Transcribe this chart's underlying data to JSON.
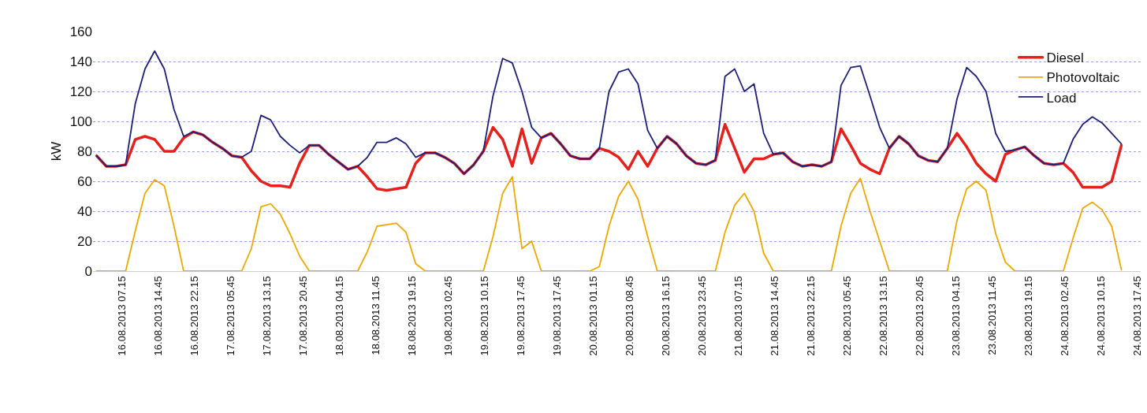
{
  "chart_data": {
    "type": "line",
    "ylabel": "kW",
    "grid": "y",
    "legend": "top right",
    "marker": "none",
    "line_style": "solid",
    "ylim": [
      0,
      160
    ],
    "yticks": [
      0,
      20,
      40,
      60,
      80,
      100,
      120,
      140,
      160
    ],
    "xlim": [
      "2013-08-16T01:15",
      "2013-08-25T02:00"
    ],
    "xticks": [
      {
        "value": "2013-08-16T07:15",
        "label": "16.08.2013 07.15"
      },
      {
        "value": "2013-08-16T14:45",
        "label": "16.08.2013 14.45"
      },
      {
        "value": "2013-08-16T22:15",
        "label": "16.08.2013 22.15"
      },
      {
        "value": "2013-08-17T05:45",
        "label": "17.08.2013 05.45"
      },
      {
        "value": "2013-08-17T13:15",
        "label": "17.08.2013 13.15"
      },
      {
        "value": "2013-08-17T20:45",
        "label": "17.08.2013 20.45"
      },
      {
        "value": "2013-08-18T04:15",
        "label": "18.08.2013 04.15"
      },
      {
        "value": "2013-08-18T11:45",
        "label": "18.08.2013 11.45"
      },
      {
        "value": "2013-08-18T19:15",
        "label": "18.08.2013 19.15"
      },
      {
        "value": "2013-08-19T02:45",
        "label": "19.08.2013 02.45"
      },
      {
        "value": "2013-08-19T10:15",
        "label": "19.08.2013 10.15"
      },
      {
        "value": "2013-08-19T17:45",
        "label": "19.08.2013 17.45"
      },
      {
        "value": "2013-08-20T01:15",
        "label": "19.08.2013 17.45"
      },
      {
        "value": "2013-08-20T08:45",
        "label": "20.08.2013 01.15"
      },
      {
        "value": "2013-08-20T16:15",
        "label": "20.08.2013 08.45"
      },
      {
        "value": "2013-08-20T23:45",
        "label": "20.08.2013 16.15"
      },
      {
        "value": "2013-08-21T07:15",
        "label": "20.08.2013 23.45"
      },
      {
        "value": "2013-08-21T14:45",
        "label": "21.08.2013 07.15"
      },
      {
        "value": "2013-08-21T22:15",
        "label": "21.08.2013 14.45"
      },
      {
        "value": "2013-08-22T05:45",
        "label": "21.08.2013 22.15"
      },
      {
        "value": "2013-08-22T13:15",
        "label": "22.08.2013 05.45"
      },
      {
        "value": "2013-08-22T20:45",
        "label": "22.08.2013 13.15"
      },
      {
        "value": "2013-08-23T04:15",
        "label": "22.08.2013 20.45"
      },
      {
        "value": "2013-08-23T11:45",
        "label": "23.08.2013 04.15"
      },
      {
        "value": "2013-08-23T19:15",
        "label": "23.08.2013 11.45"
      },
      {
        "value": "2013-08-24T02:45",
        "label": "23.08.2013 19.15"
      },
      {
        "value": "2013-08-24T10:15",
        "label": "24.08.2013 02.45"
      },
      {
        "value": "2013-08-24T17:45",
        "label": "24.08.2013 10.15"
      },
      {
        "value": "2013-08-25T01:15",
        "label": "24.08.2013 17.45"
      }
    ],
    "x": [
      "2013-08-16T02:00",
      "2013-08-16T04:00",
      "2013-08-16T06:00",
      "2013-08-16T08:00",
      "2013-08-16T10:00",
      "2013-08-16T12:00",
      "2013-08-16T14:00",
      "2013-08-16T16:00",
      "2013-08-16T18:00",
      "2013-08-16T20:00",
      "2013-08-16T22:00",
      "2013-08-17T00:00",
      "2013-08-17T02:00",
      "2013-08-17T04:00",
      "2013-08-17T06:00",
      "2013-08-17T08:00",
      "2013-08-17T10:00",
      "2013-08-17T12:00",
      "2013-08-17T14:00",
      "2013-08-17T16:00",
      "2013-08-17T18:00",
      "2013-08-17T20:00",
      "2013-08-17T22:00",
      "2013-08-18T00:00",
      "2013-08-18T02:00",
      "2013-08-18T04:00",
      "2013-08-18T06:00",
      "2013-08-18T08:00",
      "2013-08-18T10:00",
      "2013-08-18T12:00",
      "2013-08-18T14:00",
      "2013-08-18T16:00",
      "2013-08-18T18:00",
      "2013-08-18T20:00",
      "2013-08-18T22:00",
      "2013-08-19T00:00",
      "2013-08-19T02:00",
      "2013-08-19T04:00",
      "2013-08-19T06:00",
      "2013-08-19T08:00",
      "2013-08-19T10:00",
      "2013-08-19T12:00",
      "2013-08-19T14:00",
      "2013-08-19T16:00",
      "2013-08-19T18:00",
      "2013-08-19T20:00",
      "2013-08-19T22:00",
      "2013-08-20T00:00",
      "2013-08-20T02:00",
      "2013-08-20T04:00",
      "2013-08-20T06:00",
      "2013-08-20T08:00",
      "2013-08-20T10:00",
      "2013-08-20T12:00",
      "2013-08-20T14:00",
      "2013-08-20T16:00",
      "2013-08-20T18:00",
      "2013-08-20T20:00",
      "2013-08-20T22:00",
      "2013-08-21T00:00",
      "2013-08-21T02:00",
      "2013-08-21T04:00",
      "2013-08-21T06:00",
      "2013-08-21T08:00",
      "2013-08-21T10:00",
      "2013-08-21T12:00",
      "2013-08-21T14:00",
      "2013-08-21T16:00",
      "2013-08-21T18:00",
      "2013-08-21T20:00",
      "2013-08-21T22:00",
      "2013-08-22T00:00",
      "2013-08-22T02:00",
      "2013-08-22T04:00",
      "2013-08-22T06:00",
      "2013-08-22T08:00",
      "2013-08-22T10:00",
      "2013-08-22T12:00",
      "2013-08-22T14:00",
      "2013-08-22T16:00",
      "2013-08-22T18:00",
      "2013-08-22T20:00",
      "2013-08-22T22:00",
      "2013-08-23T00:00",
      "2013-08-23T02:00",
      "2013-08-23T04:00",
      "2013-08-23T06:00",
      "2013-08-23T08:00",
      "2013-08-23T10:00",
      "2013-08-23T12:00",
      "2013-08-23T14:00",
      "2013-08-23T16:00",
      "2013-08-23T18:00",
      "2013-08-23T20:00",
      "2013-08-23T22:00",
      "2013-08-24T00:00",
      "2013-08-24T02:00",
      "2013-08-24T04:00",
      "2013-08-24T06:00",
      "2013-08-24T08:00",
      "2013-08-24T10:00",
      "2013-08-24T12:00",
      "2013-08-24T14:00",
      "2013-08-24T16:00",
      "2013-08-24T18:00",
      "2013-08-24T20:00",
      "2013-08-24T22:00"
    ],
    "series": [
      {
        "name": "Diesel",
        "color": "#e8201c",
        "values": [
          77,
          70,
          70,
          71,
          88,
          90,
          88,
          80,
          80,
          89,
          93,
          91,
          86,
          82,
          77,
          76,
          67,
          60,
          57,
          57,
          56,
          72,
          84,
          84,
          78,
          73,
          68,
          70,
          63,
          55,
          54,
          55,
          56,
          72,
          79,
          79,
          76,
          72,
          65,
          71,
          80,
          96,
          88,
          70,
          95,
          72,
          89,
          92,
          85,
          77,
          75,
          75,
          82,
          80,
          76,
          68,
          80,
          70,
          82,
          90,
          85,
          77,
          72,
          71,
          74,
          98,
          82,
          66,
          75,
          75,
          78,
          79,
          73,
          70,
          71,
          70,
          73,
          95,
          84,
          72,
          68,
          65,
          82,
          90,
          85,
          77,
          74,
          73,
          82,
          92,
          83,
          72,
          65,
          60,
          78,
          81,
          83,
          77,
          72,
          71,
          72,
          66,
          56,
          56,
          56,
          60,
          84
        ]
      },
      {
        "name": "Photovoltaic",
        "color": "#f0a800",
        "values": [
          0,
          0,
          0,
          0,
          27,
          52,
          61,
          57,
          30,
          0,
          0,
          0,
          0,
          0,
          0,
          0,
          15,
          43,
          45,
          38,
          25,
          10,
          0,
          0,
          0,
          0,
          0,
          0,
          13,
          30,
          31,
          32,
          26,
          5,
          0,
          0,
          0,
          0,
          0,
          0,
          0,
          23,
          52,
          63,
          15,
          20,
          0,
          0,
          0,
          0,
          0,
          0,
          3,
          30,
          50,
          60,
          48,
          23,
          0,
          0,
          0,
          0,
          0,
          0,
          0,
          26,
          44,
          52,
          40,
          12,
          0,
          0,
          0,
          0,
          0,
          0,
          0,
          30,
          52,
          62,
          40,
          20,
          0,
          0,
          0,
          0,
          0,
          0,
          0,
          34,
          55,
          60,
          54,
          25,
          6,
          0,
          0,
          0,
          0,
          0,
          0,
          22,
          42,
          46,
          41,
          30,
          1
        ]
      },
      {
        "name": "Load",
        "color": "#1c1f7a",
        "values": [
          77,
          70,
          70,
          71,
          112,
          135,
          147,
          135,
          108,
          90,
          93,
          91,
          86,
          82,
          77,
          76,
          80,
          104,
          101,
          90,
          84,
          79,
          84,
          84,
          78,
          73,
          68,
          70,
          76,
          86,
          86,
          89,
          85,
          76,
          79,
          79,
          76,
          72,
          65,
          71,
          80,
          117,
          142,
          139,
          120,
          96,
          89,
          92,
          85,
          77,
          75,
          75,
          82,
          120,
          133,
          135,
          125,
          94,
          82,
          90,
          85,
          77,
          72,
          71,
          74,
          130,
          135,
          120,
          125,
          92,
          78,
          79,
          73,
          70,
          71,
          70,
          73,
          124,
          136,
          137,
          117,
          96,
          82,
          90,
          85,
          77,
          74,
          73,
          82,
          115,
          136,
          130,
          120,
          92,
          80,
          81,
          83,
          77,
          72,
          71,
          72,
          88,
          98,
          103,
          99,
          92,
          85
        ]
      }
    ]
  }
}
